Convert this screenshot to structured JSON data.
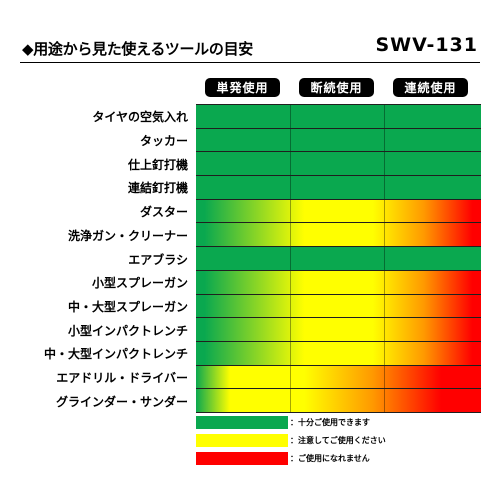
{
  "header": {
    "title": "◆用途から見た使えるツールの目安",
    "model": "SWV-131"
  },
  "columns": [
    "単発使用",
    "断続使用",
    "連続使用"
  ],
  "colors": {
    "green": "#0aa84f",
    "yellow": "#ffff00",
    "orange": "#ff9900",
    "red": "#ff0000"
  },
  "rows": [
    {
      "label": "タイヤの空気入れ",
      "rating": "green"
    },
    {
      "label": "タッカー",
      "rating": "green"
    },
    {
      "label": "仕上釘打機",
      "rating": "green"
    },
    {
      "label": "連結釘打機",
      "rating": "green"
    },
    {
      "label": "ダスター",
      "rating": "green-yellow-red"
    },
    {
      "label": "洗浄ガン・クリーナー",
      "rating": "green-yellow-red"
    },
    {
      "label": "エアブラシ",
      "rating": "green"
    },
    {
      "label": "小型スプレーガン",
      "rating": "green-yellow-red"
    },
    {
      "label": "中・大型スプレーガン",
      "rating": "green-yellow-red"
    },
    {
      "label": "小型インパクトレンチ",
      "rating": "green-yellow-red"
    },
    {
      "label": "中・大型インパクトレンチ",
      "rating": "green-yellow-red"
    },
    {
      "label": "エアドリル・ドライバー",
      "rating": "yellow-red"
    },
    {
      "label": "グラインダー・サンダー",
      "rating": "yellow-red"
    }
  ],
  "legend": [
    {
      "color": "green",
      "text": "：十分ご使用できます"
    },
    {
      "color": "yellow",
      "text": "：注意してご使用ください"
    },
    {
      "color": "red",
      "text": "：ご使用になれません"
    }
  ]
}
